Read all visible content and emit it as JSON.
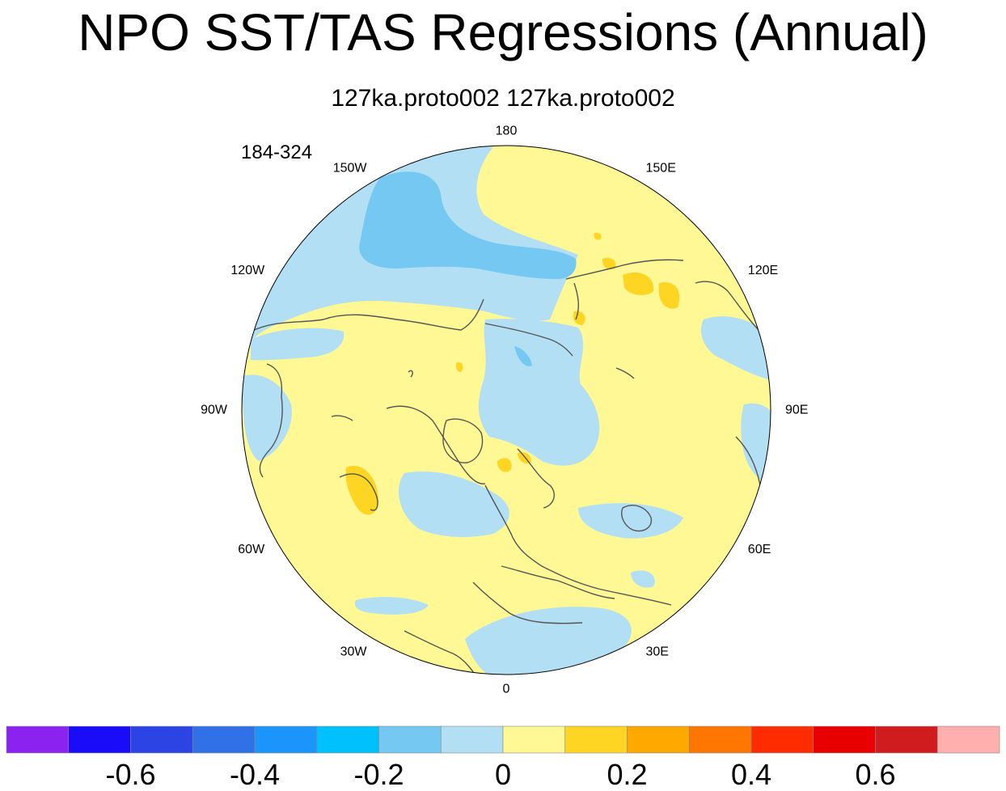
{
  "title": "NPO SST/TAS Regressions (Annual)",
  "subtitle": "127ka.proto002  127ka.proto002",
  "years_label": "184-324",
  "chart_data": {
    "type": "heatmap",
    "projection": "north-polar-stereographic",
    "title": "NPO SST/TAS Regressions (Annual)",
    "subtitle": "127ka.proto002  127ka.proto002",
    "period": "184-324",
    "longitude_labels": [
      {
        "text": "180",
        "lon": 180
      },
      {
        "text": "150E",
        "lon": 150
      },
      {
        "text": "120E",
        "lon": 120
      },
      {
        "text": "90E",
        "lon": 90
      },
      {
        "text": "60E",
        "lon": 60
      },
      {
        "text": "30E",
        "lon": 30
      },
      {
        "text": "0",
        "lon": 0
      },
      {
        "text": "30W",
        "lon": -30
      },
      {
        "text": "60W",
        "lon": -60
      },
      {
        "text": "90W",
        "lon": -90
      },
      {
        "text": "120W",
        "lon": -120
      },
      {
        "text": "150W",
        "lon": -150
      }
    ],
    "colorbar": {
      "colors": [
        "#8b22f0",
        "#1a0cf9",
        "#2d44e5",
        "#3171e7",
        "#1b95fb",
        "#00c1fb",
        "#74c8f2",
        "#b2dff4",
        "#fff894",
        "#ffd524",
        "#ffa900",
        "#ff7702",
        "#ff2c00",
        "#e80000",
        "#d11c1f",
        "#ffafae"
      ],
      "levels": [
        -0.7,
        -0.6,
        -0.5,
        -0.4,
        -0.3,
        -0.2,
        -0.1,
        0,
        0.1,
        0.2,
        0.3,
        0.4,
        0.5,
        0.6,
        0.7
      ],
      "tick_labels": [
        "-0.6",
        "-0.4",
        "-0.2",
        "0",
        "0.2",
        "0.4",
        "0.6"
      ],
      "tick_values": [
        -0.6,
        -0.4,
        -0.2,
        0,
        0.2,
        0.4,
        0.6
      ]
    }
  }
}
